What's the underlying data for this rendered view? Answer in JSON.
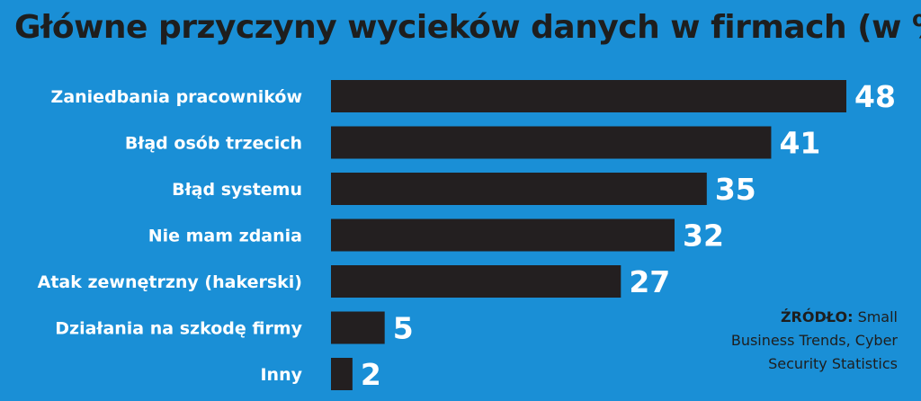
{
  "chart_data": {
    "type": "bar",
    "orientation": "horizontal",
    "title": "Główne przyczyny wycieków danych w firmach (w %)",
    "categories": [
      "Zaniedbania pracowników",
      "Błąd osób trzecich",
      "Błąd systemu",
      "Nie mam zdania",
      "Atak zewnętrzny (hakerski)",
      "Działania na szkodę firmy",
      "Inny"
    ],
    "values": [
      48,
      41,
      35,
      32,
      27,
      5,
      2
    ],
    "xlim": [
      0,
      48
    ],
    "grid": false,
    "colors": {
      "background": "#1a8fd6",
      "bar": "#231f20",
      "labels": "#ffffff",
      "title": "#1e1e1e"
    }
  },
  "source": {
    "label": "ŹRÓDŁO:",
    "line1": "Small",
    "line2": "Business Trends, Cyber",
    "line3": "Security Statistics"
  }
}
